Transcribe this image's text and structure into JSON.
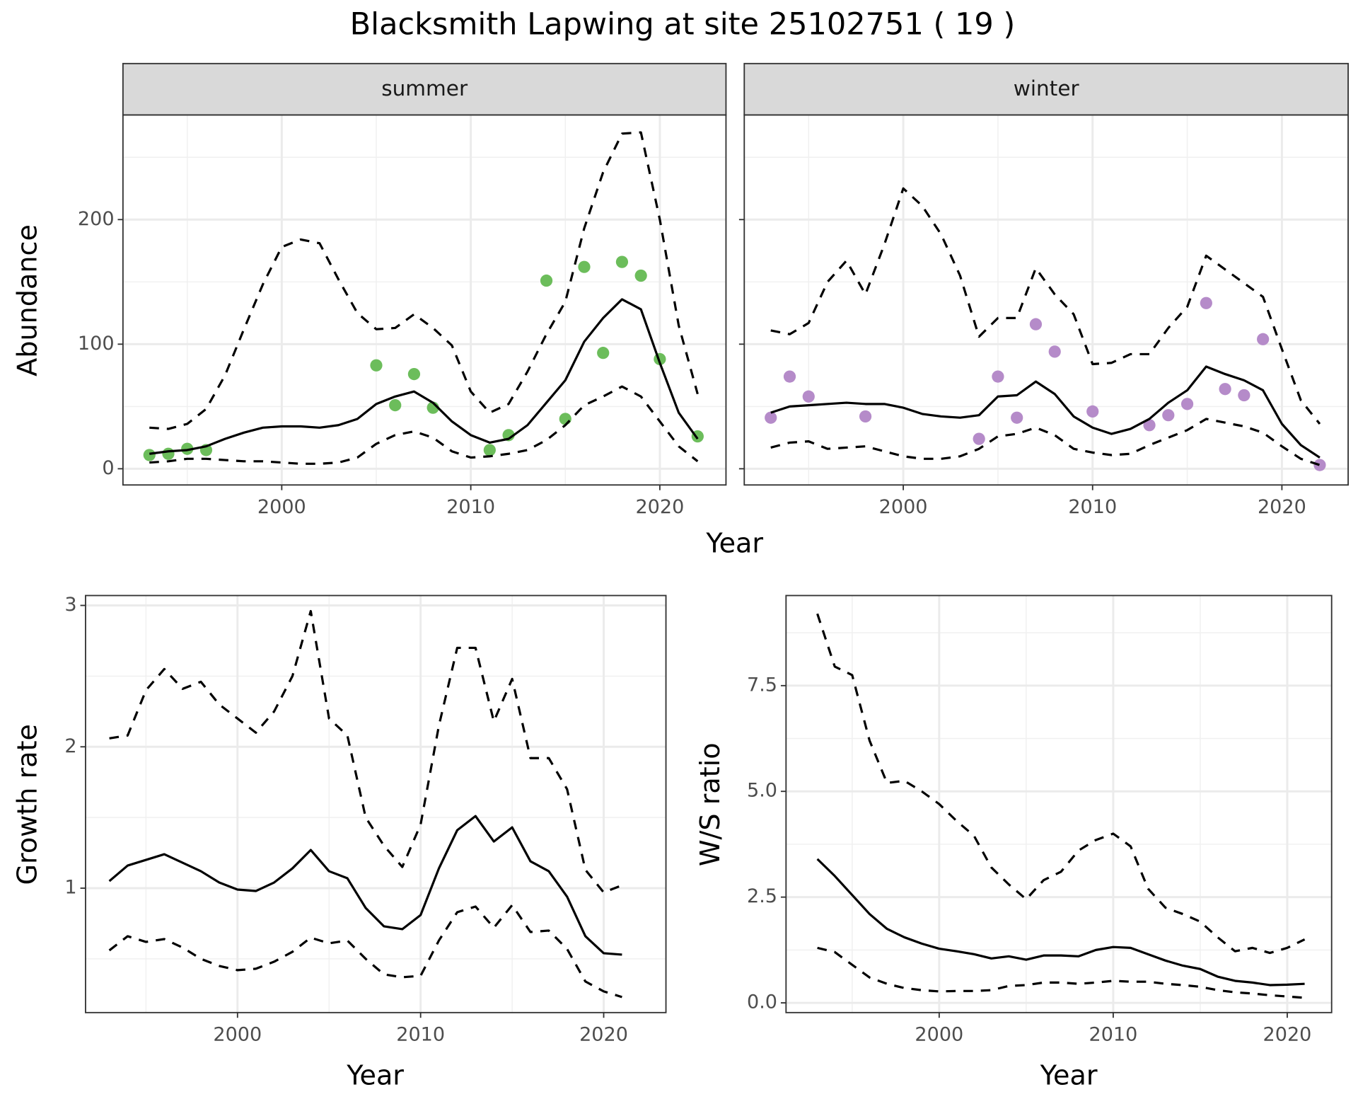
{
  "title": "Blacksmith Lapwing at site 25102751 ( 19 )",
  "chart_data": [
    {
      "type": "line",
      "strip": "summer",
      "ylabel": "Abundance",
      "xlabel": "Year",
      "x": [
        1993,
        1994,
        1995,
        1996,
        1997,
        1998,
        1999,
        2000,
        2001,
        2002,
        2003,
        2004,
        2005,
        2006,
        2007,
        2008,
        2009,
        2010,
        2011,
        2012,
        2013,
        2014,
        2015,
        2016,
        2017,
        2018,
        2019,
        2020,
        2021,
        2022
      ],
      "xlim": [
        1991.6,
        2023.5
      ],
      "xticks": [
        2000,
        2010,
        2020
      ],
      "ylim": [
        -13,
        284
      ],
      "yticks": [
        0,
        100,
        200
      ],
      "grid": true,
      "series": [
        {
          "style": "points",
          "color": "#6cbd5b",
          "values": [
            11,
            12,
            16,
            15,
            null,
            null,
            null,
            null,
            null,
            null,
            null,
            null,
            83,
            51,
            76,
            49,
            null,
            null,
            15,
            27,
            null,
            151,
            40,
            162,
            93,
            166,
            155,
            88,
            null,
            26
          ]
        },
        {
          "style": "solid",
          "color": "#000000",
          "values": [
            12,
            14,
            15,
            18,
            24,
            29,
            33,
            34,
            34,
            33,
            35,
            40,
            52,
            58,
            62,
            53,
            38,
            27,
            21,
            24,
            35,
            53,
            71,
            102,
            121,
            136,
            128,
            85,
            45,
            24
          ]
        },
        {
          "style": "dashed",
          "color": "#000000",
          "values": [
            33,
            32,
            36,
            48,
            75,
            112,
            148,
            178,
            184,
            181,
            152,
            125,
            112,
            113,
            124,
            113,
            99,
            62,
            45,
            52,
            78,
            108,
            134,
            193,
            238,
            269,
            270,
            200,
            115,
            60
          ]
        },
        {
          "style": "dashed",
          "color": "#000000",
          "values": [
            5,
            6,
            8,
            8,
            7,
            6,
            6,
            5,
            4,
            4,
            5,
            9,
            20,
            27,
            30,
            25,
            14,
            9,
            10,
            12,
            15,
            23,
            35,
            51,
            58,
            66,
            58,
            38,
            18,
            6
          ]
        }
      ]
    },
    {
      "type": "line",
      "strip": "winter",
      "show_ytick_labels": false,
      "x": [
        1993,
        1994,
        1995,
        1996,
        1997,
        1998,
        1999,
        2000,
        2001,
        2002,
        2003,
        2004,
        2005,
        2006,
        2007,
        2008,
        2009,
        2010,
        2011,
        2012,
        2013,
        2014,
        2015,
        2016,
        2017,
        2018,
        2019,
        2020,
        2021,
        2022
      ],
      "xlim": [
        1991.6,
        2023.5
      ],
      "xticks": [
        2000,
        2010,
        2020
      ],
      "ylim": [
        -13,
        284
      ],
      "yticks": [
        0,
        100,
        200
      ],
      "grid": true,
      "series": [
        {
          "style": "points",
          "color": "#b58bc9",
          "values": [
            41,
            74,
            58,
            null,
            null,
            42,
            null,
            null,
            null,
            null,
            null,
            24,
            74,
            41,
            116,
            94,
            null,
            46,
            null,
            null,
            35,
            43,
            52,
            133,
            64,
            59,
            104,
            null,
            null,
            3
          ]
        },
        {
          "style": "solid",
          "color": "#000000",
          "values": [
            45,
            50,
            51,
            52,
            53,
            52,
            52,
            49,
            44,
            42,
            41,
            43,
            58,
            59,
            70,
            60,
            42,
            33,
            28,
            32,
            40,
            53,
            63,
            82,
            76,
            71,
            63,
            36,
            19,
            9
          ]
        },
        {
          "style": "dashed",
          "color": "#000000",
          "values": [
            111,
            108,
            117,
            150,
            167,
            140,
            180,
            225,
            211,
            188,
            155,
            106,
            121,
            121,
            161,
            140,
            124,
            84,
            85,
            92,
            92,
            113,
            130,
            171,
            160,
            149,
            138,
            96,
            55,
            36
          ]
        },
        {
          "style": "dashed",
          "color": "#000000",
          "values": [
            17,
            21,
            22,
            16,
            17,
            18,
            14,
            10,
            8,
            8,
            10,
            16,
            26,
            28,
            33,
            27,
            16,
            13,
            11,
            12,
            19,
            25,
            31,
            40,
            37,
            34,
            29,
            18,
            8,
            3
          ]
        }
      ]
    },
    {
      "type": "line",
      "ylabel": "Growth rate",
      "xlabel": "Year",
      "x": [
        1993,
        1994,
        1995,
        1996,
        1997,
        1998,
        1999,
        2000,
        2001,
        2002,
        2003,
        2004,
        2005,
        2006,
        2007,
        2008,
        2009,
        2010,
        2011,
        2012,
        2013,
        2014,
        2015,
        2016,
        2017,
        2018,
        2019,
        2020,
        2021
      ],
      "xlim": [
        1991.7,
        2023.4
      ],
      "xticks": [
        2000,
        2010,
        2020
      ],
      "ylim": [
        0.12,
        3.07
      ],
      "yticks": [
        1,
        2,
        3
      ],
      "grid": true,
      "series": [
        {
          "style": "solid",
          "color": "#000000",
          "values": [
            1.05,
            1.16,
            1.2,
            1.24,
            1.18,
            1.12,
            1.04,
            0.99,
            0.98,
            1.04,
            1.14,
            1.27,
            1.12,
            1.07,
            0.86,
            0.73,
            0.71,
            0.81,
            1.14,
            1.41,
            1.51,
            1.33,
            1.43,
            1.19,
            1.12,
            0.94,
            0.66,
            0.54,
            0.53
          ]
        },
        {
          "style": "dashed",
          "color": "#000000",
          "values": [
            2.06,
            2.08,
            2.4,
            2.55,
            2.41,
            2.46,
            2.3,
            2.2,
            2.1,
            2.25,
            2.5,
            2.96,
            2.2,
            2.08,
            1.5,
            1.3,
            1.15,
            1.45,
            2.15,
            2.7,
            2.7,
            2.18,
            2.48,
            1.92,
            1.92,
            1.7,
            1.13,
            0.97,
            1.02
          ]
        },
        {
          "style": "dashed",
          "color": "#000000",
          "values": [
            0.56,
            0.66,
            0.62,
            0.64,
            0.58,
            0.5,
            0.45,
            0.42,
            0.43,
            0.48,
            0.55,
            0.65,
            0.61,
            0.63,
            0.5,
            0.39,
            0.37,
            0.38,
            0.63,
            0.83,
            0.87,
            0.72,
            0.88,
            0.69,
            0.7,
            0.57,
            0.34,
            0.27,
            0.23
          ]
        }
      ]
    },
    {
      "type": "line",
      "ylabel": "W/S ratio",
      "xlabel": "Year",
      "x": [
        1993,
        1994,
        1995,
        1996,
        1997,
        1998,
        1999,
        2000,
        2001,
        2002,
        2003,
        2004,
        2005,
        2006,
        2007,
        2008,
        2009,
        2010,
        2011,
        2012,
        2013,
        2014,
        2015,
        2016,
        2017,
        2018,
        2019,
        2020,
        2021
      ],
      "xlim": [
        1991.2,
        2022.55
      ],
      "xticks": [
        2000,
        2010,
        2020
      ],
      "ylim": [
        -0.23,
        9.63
      ],
      "yticks": [
        {
          "value": 0,
          "label": "0.0"
        },
        2.5,
        {
          "value": 5,
          "label": "5.0"
        },
        7.5
      ],
      "grid": true,
      "series": [
        {
          "style": "solid",
          "color": "#000000",
          "values": [
            3.4,
            3.0,
            2.55,
            2.1,
            1.75,
            1.55,
            1.4,
            1.28,
            1.22,
            1.15,
            1.05,
            1.1,
            1.02,
            1.12,
            1.12,
            1.1,
            1.25,
            1.32,
            1.3,
            1.15,
            1.0,
            0.88,
            0.8,
            0.62,
            0.52,
            0.48,
            0.42,
            0.43,
            0.45
          ]
        },
        {
          "style": "dashed",
          "color": "#000000",
          "values": [
            9.2,
            7.95,
            7.75,
            6.2,
            5.2,
            5.25,
            5.0,
            4.7,
            4.3,
            3.95,
            3.2,
            2.8,
            2.45,
            2.9,
            3.1,
            3.6,
            3.85,
            4.0,
            3.7,
            2.7,
            2.25,
            2.1,
            1.92,
            1.55,
            1.22,
            1.3,
            1.18,
            1.3,
            1.5
          ]
        },
        {
          "style": "dashed",
          "color": "#000000",
          "values": [
            1.3,
            1.2,
            0.9,
            0.6,
            0.45,
            0.35,
            0.3,
            0.27,
            0.28,
            0.28,
            0.3,
            0.4,
            0.42,
            0.48,
            0.48,
            0.45,
            0.48,
            0.52,
            0.5,
            0.5,
            0.45,
            0.42,
            0.38,
            0.3,
            0.25,
            0.22,
            0.18,
            0.15,
            0.12
          ]
        }
      ]
    }
  ]
}
